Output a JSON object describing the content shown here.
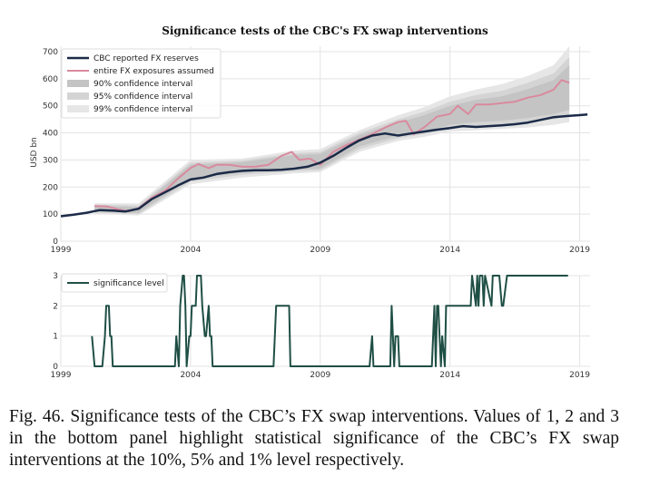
{
  "caption": "Fig. 46.  Significance tests of the CBC’s FX swap interventions. Values of 1, 2 and 3 in the bottom panel highlight statistical significance of the CBC’s FX swap interventions at the 10%, 5% and 1% level respectively.",
  "colors": {
    "reserves": "#1b2a47",
    "exposures": "#d98a9e",
    "ci90": "#c4c4c4",
    "ci95": "#d4d4d4",
    "ci99": "#e6e6e6",
    "significance": "#1f4f45"
  },
  "chart_data": [
    {
      "type": "line",
      "title": "Significance tests of the CBC's FX swap interventions",
      "ylabel": "USD bn",
      "xlim": [
        1999,
        2019.4
      ],
      "ylim": [
        0,
        720
      ],
      "xticks": [
        "1999",
        "2004",
        "2009",
        "2014",
        "2019"
      ],
      "yticks": [
        "0",
        "100",
        "200",
        "300",
        "400",
        "500",
        "600",
        "700"
      ],
      "grid": true,
      "legend_position": "top-left",
      "legend": [
        "CBC reported FX reserves",
        "entire FX exposures assumed",
        "90% confidence interval",
        "95% confidence interval",
        "99% confidence interval"
      ],
      "series": [
        {
          "name": "CBC reported FX reserves",
          "x": [
            1999.0,
            1999.5,
            2000.0,
            2000.5,
            2001.0,
            2001.5,
            2002.0,
            2002.5,
            2003.0,
            2003.5,
            2004.0,
            2004.5,
            2005.0,
            2005.5,
            2006.0,
            2006.5,
            2007.0,
            2007.5,
            2008.0,
            2008.5,
            2009.0,
            2009.5,
            2010.0,
            2010.5,
            2011.0,
            2011.5,
            2012.0,
            2012.5,
            2013.0,
            2013.5,
            2014.0,
            2014.5,
            2015.0,
            2015.5,
            2016.0,
            2016.5,
            2017.0,
            2017.5,
            2018.0,
            2018.5,
            2019.3
          ],
          "values": [
            92,
            98,
            105,
            115,
            113,
            110,
            120,
            155,
            180,
            205,
            228,
            235,
            248,
            255,
            260,
            262,
            262,
            264,
            268,
            275,
            290,
            315,
            345,
            372,
            390,
            398,
            390,
            398,
            405,
            412,
            418,
            425,
            422,
            425,
            428,
            432,
            438,
            448,
            458,
            462,
            468
          ]
        },
        {
          "name": "entire FX exposures assumed",
          "x": [
            2000.3,
            2000.8,
            2001.2,
            2001.6,
            2002.0,
            2002.5,
            2003.0,
            2003.5,
            2004.0,
            2004.3,
            2004.7,
            2005.0,
            2005.5,
            2006.0,
            2006.5,
            2007.0,
            2007.5,
            2007.9,
            2008.2,
            2008.6,
            2009.0,
            2009.5,
            2010.0,
            2010.5,
            2011.0,
            2011.5,
            2012.0,
            2012.3,
            2012.6,
            2013.0,
            2013.5,
            2014.0,
            2014.3,
            2014.7,
            2015.0,
            2015.5,
            2016.0,
            2016.5,
            2017.0,
            2017.5,
            2018.0,
            2018.3,
            2018.6
          ],
          "values": [
            130,
            128,
            118,
            110,
            122,
            160,
            185,
            230,
            270,
            285,
            270,
            282,
            282,
            275,
            275,
            282,
            315,
            330,
            300,
            305,
            282,
            330,
            355,
            375,
            395,
            420,
            440,
            445,
            395,
            420,
            460,
            470,
            500,
            470,
            505,
            505,
            510,
            515,
            530,
            540,
            560,
            595,
            585
          ]
        }
      ],
      "confidence_bands": [
        {
          "name": "99% confidence interval",
          "x": [
            2000.3,
            2002.0,
            2004.0,
            2006.0,
            2008.0,
            2009.0,
            2010.5,
            2012.0,
            2013.0,
            2014.0,
            2015.0,
            2016.0,
            2017.0,
            2018.0,
            2018.6
          ],
          "lower": [
            100,
            95,
            210,
            235,
            250,
            255,
            330,
            370,
            385,
            405,
            410,
            415,
            420,
            430,
            440
          ],
          "upper": [
            140,
            140,
            300,
            305,
            335,
            340,
            410,
            465,
            495,
            535,
            560,
            580,
            610,
            650,
            720
          ]
        },
        {
          "name": "95% confidence interval",
          "x": [
            2000.3,
            2002.0,
            2004.0,
            2006.0,
            2008.0,
            2009.0,
            2010.5,
            2012.0,
            2013.0,
            2014.0,
            2015.0,
            2016.0,
            2017.0,
            2018.0,
            2018.6
          ],
          "lower": [
            105,
            100,
            220,
            245,
            258,
            262,
            340,
            380,
            395,
            418,
            425,
            430,
            440,
            450,
            465
          ],
          "upper": [
            135,
            132,
            290,
            298,
            325,
            330,
            400,
            450,
            478,
            515,
            540,
            555,
            585,
            620,
            680
          ]
        },
        {
          "name": "90% confidence interval",
          "x": [
            2000.3,
            2002.0,
            2004.0,
            2006.0,
            2008.0,
            2009.0,
            2010.5,
            2012.0,
            2013.0,
            2014.0,
            2015.0,
            2016.0,
            2017.0,
            2018.0,
            2018.6
          ],
          "lower": [
            110,
            105,
            230,
            252,
            265,
            268,
            350,
            390,
            405,
            430,
            440,
            445,
            455,
            470,
            485
          ],
          "upper": [
            130,
            126,
            282,
            292,
            318,
            322,
            392,
            438,
            465,
            500,
            522,
            535,
            562,
            595,
            650
          ]
        }
      ]
    },
    {
      "type": "line",
      "xlim": [
        1999,
        2019.4
      ],
      "ylim": [
        0,
        3
      ],
      "xticks": [
        "1999",
        "2004",
        "2009",
        "2014",
        "2019"
      ],
      "yticks": [
        "0",
        "1",
        "2",
        "3"
      ],
      "grid": true,
      "legend_position": "top-left",
      "legend": [
        "significance level"
      ],
      "series": [
        {
          "name": "significance level",
          "x": [
            2000.2,
            2000.3,
            2000.6,
            2000.7,
            2000.75,
            2000.85,
            2000.9,
            2000.95,
            2001.0,
            2001.05,
            2001.1,
            2001.2,
            2002.0,
            2002.5,
            2003.0,
            2003.4,
            2003.45,
            2003.55,
            2003.6,
            2003.7,
            2003.75,
            2003.8,
            2003.85,
            2003.95,
            2004.0,
            2004.05,
            2004.1,
            2004.2,
            2004.25,
            2004.4,
            2004.45,
            2004.55,
            2004.6,
            2004.7,
            2004.75,
            2004.8,
            2004.85,
            2004.95,
            2005.0,
            2005.05,
            2005.15,
            2005.2,
            2006.5,
            2007.2,
            2007.3,
            2007.8,
            2007.85,
            2010.9,
            2011.0,
            2011.05,
            2011.1,
            2011.2,
            2011.7,
            2011.75,
            2011.85,
            2011.9,
            2012.0,
            2012.05,
            2012.4,
            2012.45,
            2013.3,
            2013.4,
            2013.45,
            2013.5,
            2013.55,
            2013.6,
            2013.65,
            2013.7,
            2013.8,
            2013.85,
            2013.9,
            2013.95,
            2014.2,
            2014.25,
            2014.8,
            2014.85,
            2015.0,
            2015.05,
            2015.1,
            2015.15,
            2015.2,
            2015.25,
            2015.3,
            2015.35,
            2015.6,
            2015.65,
            2015.9,
            2016.0,
            2016.05,
            2016.2,
            2016.3,
            2016.35,
            2016.4,
            2016.5,
            2016.55,
            2016.7,
            2016.75,
            2016.8,
            2017.0,
            2017.05,
            2017.4,
            2017.45,
            2017.7,
            2017.75,
            2018.0,
            2018.1,
            2018.5,
            2018.55
          ],
          "values": [
            1,
            0,
            0,
            1,
            2,
            2,
            1,
            1,
            0,
            0,
            0,
            0,
            0,
            0,
            0,
            0,
            1,
            0,
            2,
            3,
            3,
            2,
            0,
            1,
            1,
            2,
            2,
            2,
            3,
            3,
            2,
            1,
            1,
            2,
            1,
            1,
            0,
            0,
            0,
            0,
            0,
            0,
            0,
            0,
            2,
            2,
            0,
            0,
            1,
            0,
            0,
            0,
            0,
            2,
            0,
            1,
            1,
            0,
            0,
            0,
            0,
            2,
            0,
            2,
            2,
            1,
            0,
            1,
            0,
            2,
            2,
            2,
            2,
            2,
            2,
            3,
            2,
            3,
            2,
            3,
            3,
            3,
            2,
            3,
            2,
            3,
            3,
            2,
            2,
            3,
            3,
            3,
            3,
            3,
            3,
            3,
            3,
            3,
            3,
            3,
            3,
            3,
            3,
            3,
            3,
            3,
            3,
            3
          ]
        }
      ]
    }
  ]
}
